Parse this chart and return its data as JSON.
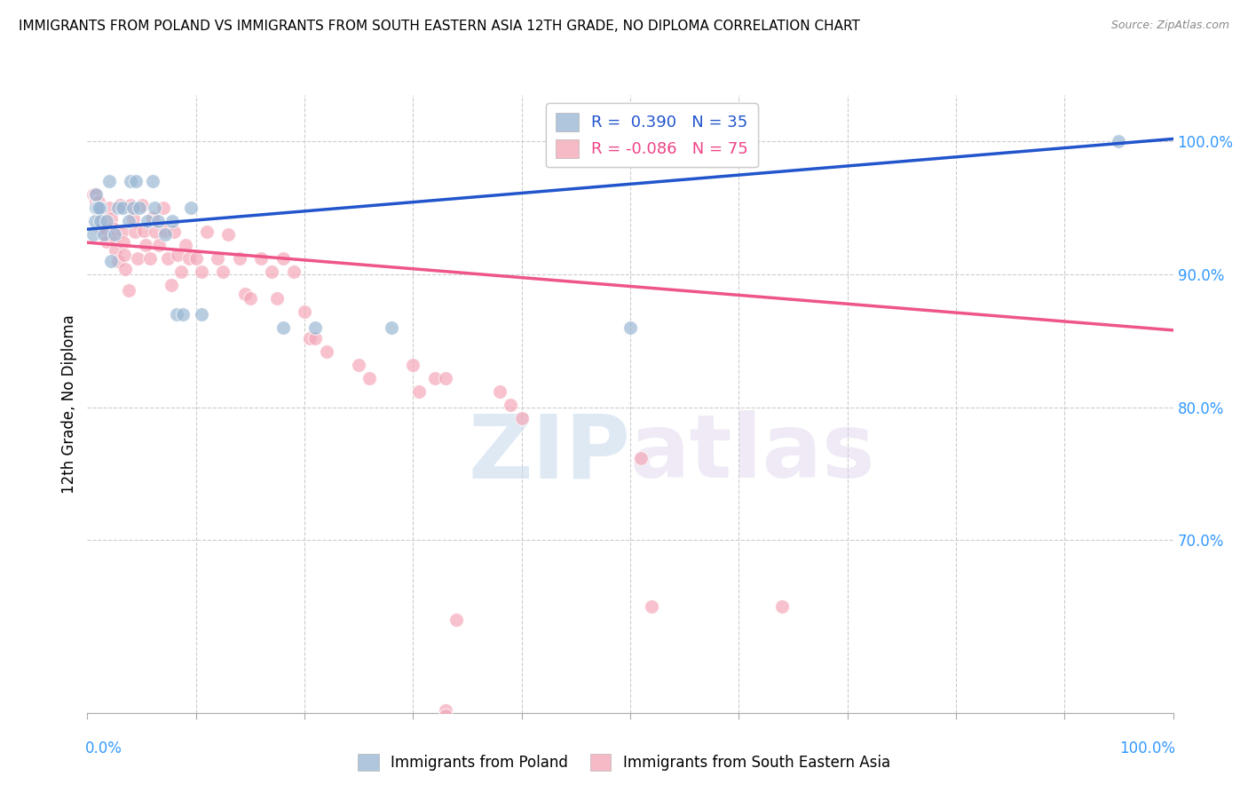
{
  "title": "IMMIGRANTS FROM POLAND VS IMMIGRANTS FROM SOUTH EASTERN ASIA 12TH GRADE, NO DIPLOMA CORRELATION CHART",
  "source": "Source: ZipAtlas.com",
  "ylabel": "12th Grade, No Diploma",
  "legend_r_blue": "0.390",
  "legend_n_blue": "35",
  "legend_r_pink": "-0.086",
  "legend_n_pink": "75",
  "blue_color": "#9BB8D4",
  "pink_color": "#F4A8B8",
  "blue_line_color": "#2255CC",
  "pink_line_color": "#EE5588",
  "xlim": [
    0.0,
    1.0
  ],
  "ylim": [
    0.57,
    1.035
  ],
  "ytick_values": [
    0.7,
    0.8,
    0.9,
    1.0
  ],
  "ytick_labels": [
    "70.0%",
    "80.0%",
    "90.0%",
    "100.0%"
  ],
  "blue_trendline_x": [
    0.0,
    1.0
  ],
  "blue_trendline_y": [
    0.934,
    1.002
  ],
  "pink_trendline_x": [
    0.0,
    1.0
  ],
  "pink_trendline_y": [
    0.924,
    0.858
  ],
  "blue_scatter_x": [
    0.02,
    0.04,
    0.045,
    0.06,
    0.005,
    0.007,
    0.008,
    0.01,
    0.012,
    0.008,
    0.01,
    0.012,
    0.015,
    0.018,
    0.025,
    0.028,
    0.032,
    0.038,
    0.042,
    0.048,
    0.055,
    0.062,
    0.065,
    0.072,
    0.078,
    0.082,
    0.088,
    0.095,
    0.105,
    0.18,
    0.21,
    0.28,
    0.5,
    0.95,
    0.022
  ],
  "blue_scatter_y": [
    0.97,
    0.97,
    0.97,
    0.97,
    0.93,
    0.94,
    0.95,
    0.95,
    0.95,
    0.96,
    0.95,
    0.94,
    0.93,
    0.94,
    0.93,
    0.95,
    0.95,
    0.94,
    0.95,
    0.95,
    0.94,
    0.95,
    0.94,
    0.93,
    0.94,
    0.87,
    0.87,
    0.95,
    0.87,
    0.86,
    0.86,
    0.86,
    0.86,
    1.0,
    0.91
  ],
  "pink_scatter_x": [
    0.005,
    0.007,
    0.008,
    0.01,
    0.01,
    0.012,
    0.013,
    0.015,
    0.016,
    0.018,
    0.02,
    0.022,
    0.023,
    0.025,
    0.026,
    0.028,
    0.03,
    0.032,
    0.033,
    0.034,
    0.035,
    0.038,
    0.04,
    0.042,
    0.044,
    0.046,
    0.05,
    0.052,
    0.054,
    0.058,
    0.06,
    0.063,
    0.066,
    0.07,
    0.072,
    0.074,
    0.077,
    0.08,
    0.083,
    0.086,
    0.09,
    0.094,
    0.1,
    0.105,
    0.11,
    0.12,
    0.125,
    0.13,
    0.14,
    0.145,
    0.15,
    0.16,
    0.17,
    0.175,
    0.18,
    0.19,
    0.2,
    0.205,
    0.21,
    0.22,
    0.25,
    0.26,
    0.3,
    0.305,
    0.32,
    0.33,
    0.38,
    0.39,
    0.4,
    0.51,
    0.52,
    0.33,
    0.34,
    0.64,
    0.33
  ],
  "pink_scatter_y": [
    0.96,
    0.96,
    0.955,
    0.955,
    0.95,
    0.945,
    0.935,
    0.935,
    0.93,
    0.925,
    0.95,
    0.942,
    0.935,
    0.928,
    0.918,
    0.91,
    0.952,
    0.933,
    0.924,
    0.915,
    0.904,
    0.888,
    0.952,
    0.942,
    0.932,
    0.912,
    0.952,
    0.933,
    0.922,
    0.912,
    0.943,
    0.932,
    0.922,
    0.95,
    0.933,
    0.912,
    0.892,
    0.932,
    0.915,
    0.902,
    0.922,
    0.912,
    0.912,
    0.902,
    0.932,
    0.912,
    0.902,
    0.93,
    0.912,
    0.885,
    0.882,
    0.912,
    0.902,
    0.882,
    0.912,
    0.902,
    0.872,
    0.852,
    0.852,
    0.842,
    0.832,
    0.822,
    0.832,
    0.812,
    0.822,
    0.822,
    0.812,
    0.802,
    0.792,
    0.762,
    0.65,
    0.572,
    0.64,
    0.65,
    0.568
  ]
}
